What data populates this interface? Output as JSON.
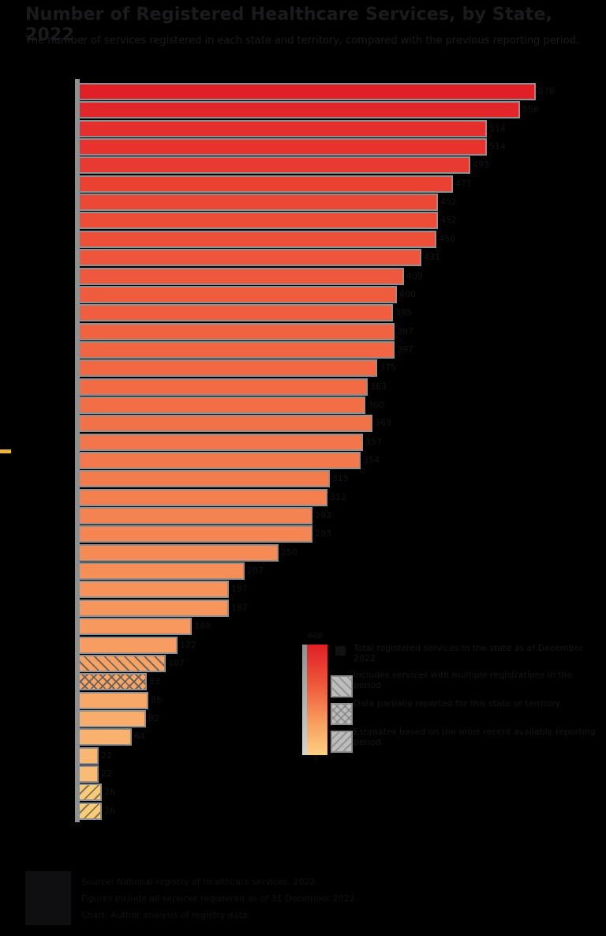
{
  "page": {
    "background": "#000000"
  },
  "header": {
    "title": "Number of Registered Healthcare Services, by State, 2022",
    "subtitle": "The number of services registered in each state and territory, compared with the previous reporting period."
  },
  "chart_data": {
    "type": "bar",
    "orientation": "horizontal",
    "title": "Number of Registered Healthcare Services, by State, 2022",
    "category_labels": "not legible (dark text on black background)",
    "values": [
      576,
      556,
      514,
      514,
      493,
      471,
      452,
      452,
      450,
      431,
      409,
      400,
      395,
      397,
      397,
      375,
      363,
      360,
      369,
      357,
      354,
      315,
      312,
      293,
      293,
      250,
      207,
      187,
      187,
      140,
      122,
      107,
      83,
      85,
      82,
      64,
      22,
      22,
      26,
      26
    ],
    "bar_colors": [
      "#e02026",
      "#e22629",
      "#e62e2c",
      "#e7322e",
      "#e93a31",
      "#eb4133",
      "#ec4836",
      "#ed4c37",
      "#ed4f38",
      "#ee553a",
      "#ee583c",
      "#ef5c3d",
      "#ef5f3f",
      "#f06240",
      "#f06542",
      "#f16843",
      "#f16b45",
      "#f26f46",
      "#f27248",
      "#f3754a",
      "#f3784b",
      "#f37c4d",
      "#f47f4f",
      "#f48351",
      "#f58653",
      "#f58a55",
      "#f68e57",
      "#f6925a",
      "#f6955c",
      "#f7995e",
      "#f79d61",
      "#f7a163",
      "#f8a566",
      "#f8a968",
      "#f8ad6b",
      "#f9b26e",
      "#f9b771",
      "#fabc74",
      "#f9cb77",
      "#f9cc76"
    ],
    "bar_hatches": [
      null,
      null,
      null,
      null,
      null,
      null,
      null,
      null,
      null,
      null,
      null,
      null,
      null,
      null,
      null,
      null,
      null,
      null,
      null,
      null,
      null,
      null,
      null,
      null,
      null,
      null,
      null,
      null,
      null,
      null,
      null,
      "back",
      "cross",
      null,
      null,
      null,
      null,
      null,
      "forward",
      "forward"
    ],
    "axis": {
      "spine_color": "#8f9092",
      "bar_outline_color": "#8f9092"
    },
    "highlight_tick_color": "#eab33c"
  },
  "legend": {
    "colorbar": {
      "top_color": "#e11f26",
      "mid_color": "#ee5539",
      "bottom_color": "#fbd083",
      "gray_strip_color": "#b0b0b0",
      "max_label": "600",
      "min_label": "0"
    },
    "entries": [
      {
        "swatch": "black-square",
        "hatch": null,
        "line1": "Total registered services in the",
        "line2": "state as of December 2022"
      },
      {
        "swatch": "gray-hatched",
        "hatch": "back",
        "line1": "Includes services with multiple",
        "line2": "registrations in the period"
      },
      {
        "swatch": "gray-hatched",
        "hatch": "cross",
        "line1": "Data partially reported for",
        "line2": "this state or territory"
      },
      {
        "swatch": "gray-hatched",
        "hatch": "forward",
        "line1": "Estimates based on the most recent",
        "line2": "available reporting period"
      }
    ]
  },
  "footer": {
    "lines": [
      "Source: National registry of healthcare services, 2022.",
      "Figures include all services registered as of 31 December 2022.",
      "Chart: Author analysis of registry data."
    ]
  }
}
